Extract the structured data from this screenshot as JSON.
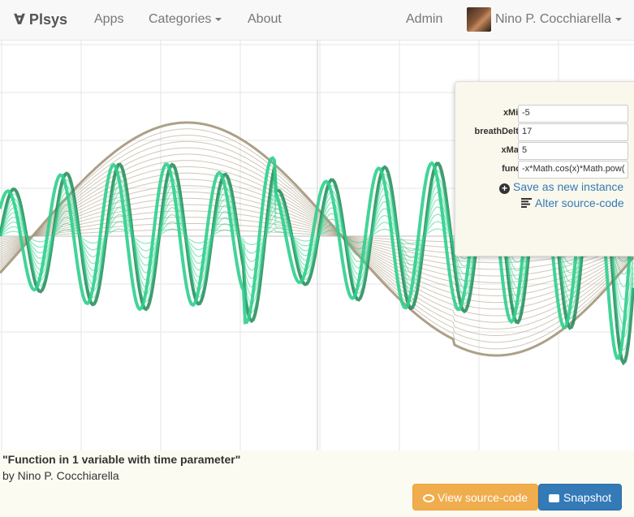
{
  "navbar": {
    "brand": "∀ Plsys",
    "apps": "Apps",
    "categories": "Categories",
    "about": "About",
    "admin": "Admin",
    "user_name": "Nino P. Cocchiarella"
  },
  "params": [
    {
      "label": "xMin",
      "value": "-5"
    },
    {
      "label": "breathDelta",
      "value": "17"
    },
    {
      "label": "xMax",
      "value": "5"
    },
    {
      "label": "funct",
      "value": "-x*Math.cos(x)*Math.pow("
    }
  ],
  "controls": {
    "save_label": "Save as new instance",
    "alter_label": "Alter source-code"
  },
  "plot": {
    "function_expression": "-x*Math.cos(x)*Math.pow(",
    "x_min": -5,
    "x_max": 5,
    "breath_delta": 17,
    "colors": {
      "green": "#2ecf8c",
      "dark_green": "#1f8a55",
      "brown": "#a89b82",
      "grid": "#e6e6e6"
    }
  },
  "footer": {
    "title": "\"Function in 1 variable with time parameter\"",
    "author": "by Nino P. Cocchiarella",
    "view_source": "View source-code",
    "snapshot": "Snapshot"
  }
}
